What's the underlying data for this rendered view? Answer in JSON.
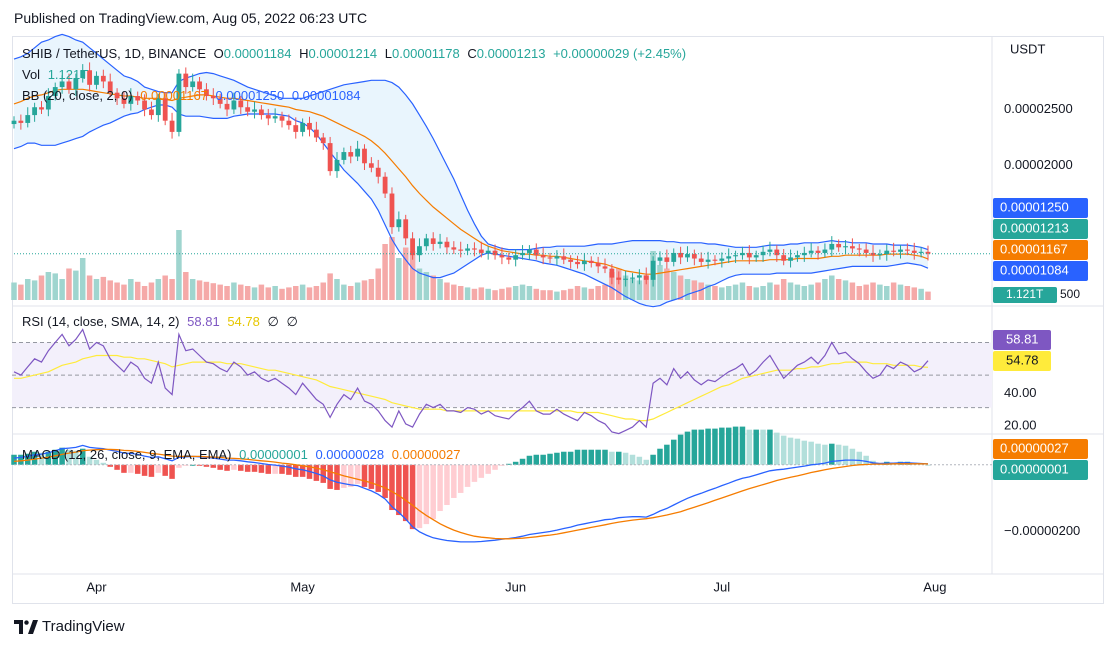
{
  "header": {
    "published": "Published on TradingView.com, Aug 05, 2022 06:23 UTC"
  },
  "footer": {
    "brand": "TradingView"
  },
  "legend": {
    "symbol": "SHIB / TetherUS, 1D, BINANCE",
    "o_label": "O",
    "o_value": "0.00001184",
    "h_label": "H",
    "h_value": "0.00001214",
    "l_label": "L",
    "l_value": "0.00001178",
    "c_label": "C",
    "c_value": "0.00001213",
    "change": "+0.00000029 (+2.45%)",
    "vol_label": "Vol",
    "vol_value": "1.121T",
    "bb_label": "BB (20, close, 2, 0)",
    "bb_basis": "0.00001167",
    "bb_upper": "0.00001250",
    "bb_lower": "0.00001084",
    "rsi_label": "RSI (14, close, SMA, 14, 2)",
    "rsi_value": "58.81",
    "rsi_ma": "54.78",
    "rsi_extra1": "∅",
    "rsi_extra2": "∅",
    "macd_label": "MACD (12, 26, close, 9, EMA, EMA)",
    "macd_hist": "0.00000001",
    "macd_line": "0.00000028",
    "macd_signal": "0.00000027"
  },
  "colors": {
    "up": "#26a69a",
    "down": "#ef5350",
    "bb_basis": "#f57c00",
    "bb_band": "#2962ff",
    "bb_fill": "#e3f2fd",
    "rsi_line": "#7e57c2",
    "rsi_ma": "#ffeb3b",
    "rsi_bg": "#f3f0fb",
    "macd_line": "#2962ff",
    "macd_signal": "#f57c00",
    "text": "#131722",
    "axis": "#131722"
  },
  "chart_data": [
    {
      "type": "candlestick",
      "pane": "price",
      "unit": "USDT",
      "scale": "linear",
      "y_ticks": [
        "0.00002500",
        "0.00002000"
      ],
      "x_ticks": [
        "Apr",
        "May",
        "Jun",
        "Jul",
        "Aug"
      ],
      "price_labels": [
        {
          "name": "bb-upper",
          "value": "0.00001250"
        },
        {
          "name": "close",
          "value": "0.00001213"
        },
        {
          "name": "bb-basis",
          "value": "0.00001167"
        },
        {
          "name": "bb-lower",
          "value": "0.00001084"
        }
      ],
      "volume_label": "1.121T",
      "volume_tick": "500",
      "ylim": [
        8e-06,
        3.12e-05
      ],
      "close": [
        2.4,
        2.38,
        2.45,
        2.52,
        2.5,
        2.62,
        2.7,
        2.75,
        2.68,
        2.78,
        2.85,
        2.72,
        2.8,
        2.75,
        2.65,
        2.6,
        2.55,
        2.62,
        2.58,
        2.5,
        2.45,
        2.6,
        2.4,
        2.3,
        2.82,
        2.7,
        2.75,
        2.68,
        2.62,
        2.6,
        2.55,
        2.5,
        2.58,
        2.52,
        2.48,
        2.5,
        2.45,
        2.42,
        2.44,
        2.4,
        2.36,
        2.3,
        2.38,
        2.32,
        2.25,
        2.2,
        1.95,
        2.05,
        2.12,
        2.08,
        2.15,
        2.02,
        1.98,
        1.9,
        1.75,
        1.45,
        1.52,
        1.35,
        1.2,
        1.28,
        1.35,
        1.3,
        1.32,
        1.27,
        1.25,
        1.24,
        1.26,
        1.25,
        1.22,
        1.24,
        1.2,
        1.18,
        1.16,
        1.2,
        1.22,
        1.25,
        1.2,
        1.18,
        1.17,
        1.19,
        1.16,
        1.14,
        1.12,
        1.15,
        1.13,
        1.1,
        1.08,
        1.0,
        0.98,
        0.99,
        1.0,
        1.02,
        0.98,
        1.15,
        1.18,
        1.14,
        1.22,
        1.18,
        1.21,
        1.17,
        1.14,
        1.16,
        1.15,
        1.17,
        1.19,
        1.2,
        1.22,
        1.18,
        1.2,
        1.23,
        1.25,
        1.2,
        1.15,
        1.18,
        1.2,
        1.22,
        1.24,
        1.22,
        1.25,
        1.3,
        1.27,
        1.28,
        1.26,
        1.25,
        1.22,
        1.2,
        1.21,
        1.24,
        1.23,
        1.25,
        1.24,
        1.22,
        1.23,
        1.213
      ],
      "bb_upper": [
        2.95,
        2.97,
        3.0,
        3.05,
        3.1,
        3.12,
        3.15,
        3.17,
        3.15,
        3.12,
        3.1,
        3.05,
        3.0,
        2.95,
        2.9,
        2.85,
        2.8,
        2.78,
        2.75,
        2.7,
        2.68,
        2.66,
        2.65,
        2.65,
        2.75,
        2.78,
        2.8,
        2.82,
        2.83,
        2.82,
        2.8,
        2.78,
        2.76,
        2.73,
        2.7,
        2.68,
        2.66,
        2.64,
        2.62,
        2.6,
        2.6,
        2.6,
        2.6,
        2.62,
        2.64,
        2.66,
        2.68,
        2.7,
        2.72,
        2.73,
        2.74,
        2.75,
        2.76,
        2.76,
        2.76,
        2.74,
        2.7,
        2.63,
        2.55,
        2.45,
        2.35,
        2.24,
        2.12,
        2.0,
        1.88,
        1.74,
        1.6,
        1.48,
        1.37,
        1.3,
        1.28,
        1.26,
        1.25,
        1.25,
        1.25,
        1.25,
        1.26,
        1.27,
        1.27,
        1.28,
        1.28,
        1.28,
        1.28,
        1.28,
        1.29,
        1.3,
        1.3,
        1.3,
        1.31,
        1.32,
        1.33,
        1.33,
        1.33,
        1.33,
        1.33,
        1.32,
        1.32,
        1.31,
        1.31,
        1.31,
        1.31,
        1.3,
        1.3,
        1.29,
        1.28,
        1.27,
        1.27,
        1.27,
        1.27,
        1.28,
        1.29,
        1.29,
        1.29,
        1.3,
        1.3,
        1.31,
        1.31,
        1.31,
        1.32,
        1.33,
        1.32,
        1.32,
        1.31,
        1.31,
        1.31,
        1.3,
        1.3,
        1.3,
        1.29,
        1.29,
        1.29,
        1.28,
        1.27,
        1.25
      ],
      "bb_basis": [
        2.55,
        2.57,
        2.6,
        2.62,
        2.63,
        2.65,
        2.67,
        2.68,
        2.68,
        2.68,
        2.68,
        2.67,
        2.66,
        2.65,
        2.64,
        2.63,
        2.62,
        2.62,
        2.61,
        2.6,
        2.6,
        2.6,
        2.59,
        2.58,
        2.6,
        2.61,
        2.62,
        2.63,
        2.63,
        2.62,
        2.61,
        2.6,
        2.6,
        2.59,
        2.58,
        2.57,
        2.56,
        2.55,
        2.54,
        2.53,
        2.52,
        2.5,
        2.49,
        2.48,
        2.46,
        2.44,
        2.41,
        2.38,
        2.35,
        2.32,
        2.29,
        2.26,
        2.22,
        2.17,
        2.11,
        2.04,
        1.97,
        1.9,
        1.82,
        1.75,
        1.69,
        1.63,
        1.58,
        1.53,
        1.48,
        1.43,
        1.39,
        1.35,
        1.31,
        1.28,
        1.26,
        1.24,
        1.23,
        1.22,
        1.21,
        1.21,
        1.2,
        1.2,
        1.19,
        1.19,
        1.18,
        1.17,
        1.16,
        1.15,
        1.14,
        1.13,
        1.12,
        1.1,
        1.08,
        1.06,
        1.05,
        1.04,
        1.03,
        1.03,
        1.04,
        1.05,
        1.06,
        1.07,
        1.08,
        1.09,
        1.1,
        1.11,
        1.12,
        1.13,
        1.14,
        1.15,
        1.15,
        1.15,
        1.15,
        1.15,
        1.16,
        1.16,
        1.16,
        1.16,
        1.17,
        1.17,
        1.17,
        1.17,
        1.18,
        1.19,
        1.19,
        1.2,
        1.2,
        1.2,
        1.2,
        1.2,
        1.2,
        1.21,
        1.21,
        1.21,
        1.21,
        1.2,
        1.19,
        1.167
      ],
      "bb_lower": [
        2.15,
        2.17,
        2.2,
        2.2,
        2.18,
        2.18,
        2.18,
        2.2,
        2.22,
        2.24,
        2.26,
        2.3,
        2.33,
        2.36,
        2.38,
        2.41,
        2.44,
        2.46,
        2.47,
        2.5,
        2.52,
        2.54,
        2.54,
        2.52,
        2.46,
        2.44,
        2.44,
        2.44,
        2.43,
        2.42,
        2.42,
        2.42,
        2.44,
        2.45,
        2.46,
        2.46,
        2.46,
        2.46,
        2.46,
        2.45,
        2.44,
        2.4,
        2.38,
        2.34,
        2.28,
        2.2,
        2.12,
        2.04,
        1.96,
        1.9,
        1.84,
        1.77,
        1.7,
        1.6,
        1.47,
        1.34,
        1.24,
        1.16,
        1.08,
        1.04,
        1.02,
        1.0,
        1.0,
        1.02,
        1.04,
        1.08,
        1.12,
        1.16,
        1.2,
        1.22,
        1.21,
        1.2,
        1.19,
        1.18,
        1.17,
        1.16,
        1.15,
        1.13,
        1.12,
        1.11,
        1.09,
        1.07,
        1.05,
        1.03,
        1.0,
        0.97,
        0.94,
        0.91,
        0.87,
        0.83,
        0.8,
        0.77,
        0.75,
        0.74,
        0.75,
        0.78,
        0.8,
        0.82,
        0.85,
        0.87,
        0.89,
        0.92,
        0.94,
        0.97,
        1.0,
        1.02,
        1.03,
        1.03,
        1.03,
        1.03,
        1.03,
        1.04,
        1.04,
        1.04,
        1.04,
        1.04,
        1.04,
        1.05,
        1.06,
        1.07,
        1.08,
        1.09,
        1.1,
        1.1,
        1.1,
        1.1,
        1.1,
        1.1,
        1.11,
        1.12,
        1.13,
        1.12,
        1.11,
        1.084
      ],
      "volume": [
        0.25,
        0.22,
        0.3,
        0.28,
        0.35,
        0.4,
        0.38,
        0.3,
        0.45,
        0.42,
        0.6,
        0.35,
        0.3,
        0.33,
        0.28,
        0.25,
        0.22,
        0.3,
        0.26,
        0.2,
        0.25,
        0.3,
        0.35,
        0.3,
        1.0,
        0.4,
        0.3,
        0.28,
        0.26,
        0.24,
        0.22,
        0.2,
        0.25,
        0.22,
        0.2,
        0.18,
        0.22,
        0.18,
        0.2,
        0.16,
        0.18,
        0.2,
        0.22,
        0.18,
        0.2,
        0.25,
        0.38,
        0.3,
        0.22,
        0.2,
        0.25,
        0.28,
        0.3,
        0.45,
        0.8,
        0.9,
        0.6,
        0.75,
        0.7,
        0.45,
        0.4,
        0.35,
        0.3,
        0.25,
        0.22,
        0.2,
        0.18,
        0.16,
        0.18,
        0.16,
        0.14,
        0.16,
        0.18,
        0.2,
        0.22,
        0.2,
        0.16,
        0.14,
        0.14,
        0.12,
        0.14,
        0.16,
        0.2,
        0.18,
        0.16,
        0.2,
        0.22,
        0.4,
        0.45,
        0.35,
        0.3,
        0.28,
        0.35,
        0.7,
        0.5,
        0.45,
        0.4,
        0.35,
        0.3,
        0.28,
        0.25,
        0.22,
        0.2,
        0.18,
        0.2,
        0.22,
        0.25,
        0.2,
        0.18,
        0.2,
        0.25,
        0.22,
        0.3,
        0.25,
        0.22,
        0.2,
        0.22,
        0.25,
        0.3,
        0.35,
        0.3,
        0.28,
        0.25,
        0.2,
        0.22,
        0.25,
        0.22,
        0.2,
        0.25,
        0.22,
        0.2,
        0.18,
        0.16,
        0.12
      ]
    },
    {
      "type": "line",
      "pane": "rsi",
      "y_ticks": [
        "40.00",
        "20.00"
      ],
      "ylim": [
        15,
        90
      ],
      "bands": [
        70,
        50,
        30
      ],
      "value_labels": [
        "58.81",
        "54.78"
      ],
      "rsi": [
        52,
        50,
        55,
        60,
        58,
        65,
        70,
        75,
        68,
        72,
        78,
        66,
        70,
        68,
        60,
        56,
        52,
        58,
        55,
        48,
        45,
        58,
        42,
        38,
        75,
        65,
        66,
        62,
        58,
        57,
        54,
        52,
        58,
        55,
        50,
        52,
        48,
        46,
        48,
        45,
        42,
        38,
        45,
        40,
        35,
        32,
        24,
        32,
        38,
        35,
        42,
        34,
        32,
        28,
        22,
        18,
        28,
        20,
        18,
        26,
        32,
        30,
        32,
        28,
        28,
        27,
        30,
        29,
        26,
        28,
        25,
        24,
        23,
        27,
        30,
        34,
        28,
        26,
        26,
        29,
        26,
        24,
        22,
        27,
        25,
        22,
        20,
        15,
        14,
        16,
        18,
        22,
        18,
        45,
        48,
        44,
        54,
        48,
        52,
        47,
        44,
        47,
        46,
        49,
        52,
        54,
        57,
        50,
        53,
        58,
        62,
        55,
        48,
        52,
        56,
        58,
        61,
        57,
        62,
        70,
        63,
        64,
        60,
        57,
        52,
        48,
        50,
        56,
        54,
        58,
        56,
        52,
        54,
        58.81
      ],
      "rsi_ma": [
        48,
        48,
        49,
        50,
        51,
        52,
        54,
        56,
        57,
        58,
        60,
        61,
        62,
        62,
        62,
        62,
        61,
        61,
        60,
        60,
        59,
        58,
        57,
        55,
        56,
        57,
        58,
        58,
        58,
        58,
        58,
        57,
        57,
        57,
        56,
        55,
        54,
        53,
        53,
        52,
        51,
        50,
        49,
        48,
        47,
        45,
        43,
        42,
        41,
        40,
        39,
        38,
        37,
        36,
        35,
        33,
        32,
        31,
        30,
        29,
        29,
        29,
        29,
        28,
        28,
        28,
        28,
        28,
        28,
        28,
        28,
        28,
        28,
        28,
        28,
        28,
        28,
        28,
        28,
        28,
        28,
        28,
        27,
        27,
        27,
        27,
        26,
        25,
        24,
        23,
        23,
        22,
        22,
        23,
        25,
        27,
        29,
        31,
        33,
        35,
        37,
        39,
        41,
        43,
        44,
        46,
        48,
        49,
        50,
        51,
        52,
        53,
        53,
        53,
        54,
        54,
        55,
        55,
        56,
        57,
        57,
        58,
        58,
        58,
        58,
        57,
        57,
        57,
        56,
        56,
        56,
        56,
        55,
        54.78
      ]
    },
    {
      "type": "bar",
      "pane": "macd",
      "y_ticks": [
        "−0.00000200"
      ],
      "value_labels": [
        "0.00000027",
        "0.00000001"
      ],
      "ylim": [
        -3.2e-06,
        8e-07
      ],
      "macd": [
        0.2,
        0.22,
        0.25,
        0.3,
        0.32,
        0.36,
        0.42,
        0.48,
        0.5,
        0.52,
        0.58,
        0.52,
        0.5,
        0.48,
        0.44,
        0.4,
        0.35,
        0.34,
        0.31,
        0.26,
        0.22,
        0.24,
        0.18,
        0.12,
        0.22,
        0.24,
        0.25,
        0.24,
        0.22,
        0.2,
        0.17,
        0.14,
        0.14,
        0.12,
        0.09,
        0.07,
        0.04,
        0.01,
        -0.01,
        -0.04,
        -0.07,
        -0.12,
        -0.15,
        -0.2,
        -0.26,
        -0.33,
        -0.45,
        -0.52,
        -0.56,
        -0.6,
        -0.62,
        -0.7,
        -0.78,
        -0.88,
        -1.02,
        -1.25,
        -1.42,
        -1.62,
        -1.85,
        -2.0,
        -2.1,
        -2.18,
        -2.22,
        -2.26,
        -2.28,
        -2.3,
        -2.3,
        -2.3,
        -2.29,
        -2.27,
        -2.25,
        -2.22,
        -2.2,
        -2.17,
        -2.13,
        -2.08,
        -2.05,
        -2.02,
        -1.99,
        -1.95,
        -1.9,
        -1.86,
        -1.8,
        -1.76,
        -1.72,
        -1.68,
        -1.64,
        -1.62,
        -1.58,
        -1.56,
        -1.55,
        -1.55,
        -1.56,
        -1.48,
        -1.38,
        -1.3,
        -1.2,
        -1.1,
        -1.0,
        -0.92,
        -0.85,
        -0.77,
        -0.7,
        -0.62,
        -0.55,
        -0.47,
        -0.4,
        -0.36,
        -0.3,
        -0.24,
        -0.18,
        -0.15,
        -0.13,
        -0.1,
        -0.07,
        -0.04,
        0.0,
        0.02,
        0.05,
        0.1,
        0.12,
        0.14,
        0.14,
        0.13,
        0.1,
        0.06,
        0.04,
        0.05,
        0.05,
        0.06,
        0.06,
        0.05,
        0.04,
        0.028
      ],
      "signal": [
        0.1,
        0.12,
        0.14,
        0.17,
        0.2,
        0.23,
        0.27,
        0.31,
        0.35,
        0.38,
        0.42,
        0.44,
        0.45,
        0.46,
        0.46,
        0.45,
        0.43,
        0.42,
        0.4,
        0.37,
        0.34,
        0.32,
        0.29,
        0.26,
        0.25,
        0.25,
        0.25,
        0.25,
        0.24,
        0.23,
        0.22,
        0.2,
        0.19,
        0.18,
        0.16,
        0.14,
        0.12,
        0.1,
        0.08,
        0.05,
        0.03,
        0.0,
        -0.03,
        -0.06,
        -0.1,
        -0.15,
        -0.21,
        -0.27,
        -0.33,
        -0.38,
        -0.43,
        -0.48,
        -0.54,
        -0.61,
        -0.69,
        -0.8,
        -0.92,
        -1.06,
        -1.21,
        -1.37,
        -1.51,
        -1.64,
        -1.76,
        -1.86,
        -1.95,
        -2.02,
        -2.08,
        -2.13,
        -2.16,
        -2.18,
        -2.2,
        -2.21,
        -2.21,
        -2.2,
        -2.19,
        -2.17,
        -2.15,
        -2.12,
        -2.1,
        -2.07,
        -2.03,
        -1.99,
        -1.95,
        -1.91,
        -1.87,
        -1.83,
        -1.79,
        -1.75,
        -1.71,
        -1.68,
        -1.65,
        -1.63,
        -1.61,
        -1.58,
        -1.54,
        -1.5,
        -1.45,
        -1.4,
        -1.33,
        -1.27,
        -1.2,
        -1.13,
        -1.06,
        -0.99,
        -0.92,
        -0.85,
        -0.78,
        -0.71,
        -0.65,
        -0.59,
        -0.53,
        -0.47,
        -0.42,
        -0.37,
        -0.33,
        -0.28,
        -0.23,
        -0.19,
        -0.15,
        -0.11,
        -0.08,
        -0.05,
        -0.02,
        0.0,
        0.01,
        0.02,
        0.02,
        0.02,
        0.03,
        0.03,
        0.03,
        0.03,
        0.03,
        0.027
      ]
    }
  ]
}
